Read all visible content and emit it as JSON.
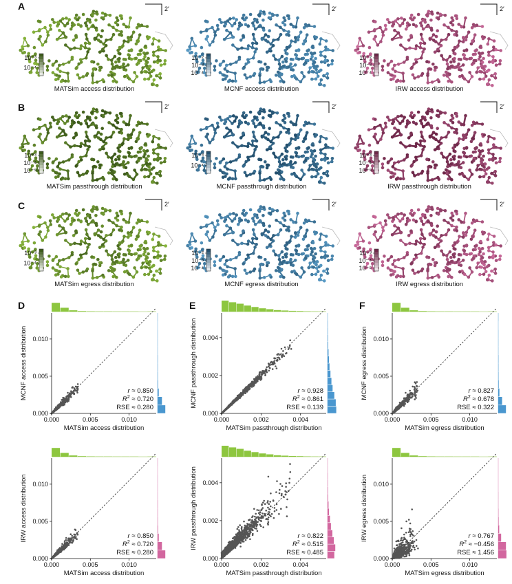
{
  "colors": {
    "matsim": "#8dbb3e",
    "matsim_dark": "#3d5a1c",
    "mcnf": "#5b9ec9",
    "mcnf_dark": "#24506e",
    "irw": "#cf6fa0",
    "irw_dark": "#6e2849",
    "points": "#555555",
    "hist_x": "#8dc63f",
    "hist_mcnf": "#4a97cf",
    "hist_irw": "#d2679f"
  },
  "panel_letters": [
    "A",
    "B",
    "C",
    "D",
    "E",
    "F"
  ],
  "scale_bar_label": "2′",
  "maps": [
    {
      "row": 0,
      "col": 0,
      "model": "matsim",
      "title": "MATSim access distribution",
      "legend_ticks": [
        "10⁻³",
        "10⁻⁴"
      ]
    },
    {
      "row": 0,
      "col": 1,
      "model": "mcnf",
      "title": "MCNF access distribution",
      "legend_ticks": [
        "10⁻²",
        "10⁻³",
        "10⁻⁴"
      ]
    },
    {
      "row": 0,
      "col": 2,
      "model": "irw",
      "title": "IRW access distribution",
      "legend_ticks": [
        "10⁻²",
        "10⁻³",
        "10⁻⁴"
      ]
    },
    {
      "row": 1,
      "col": 0,
      "model": "matsim",
      "title": "MATSim passthrough distribution",
      "legend_ticks": [
        "10⁻³",
        "10⁻⁴",
        "10⁻⁵"
      ]
    },
    {
      "row": 1,
      "col": 1,
      "model": "mcnf",
      "title": "MCNF passthrough distribution",
      "legend_ticks": [
        "10⁻³",
        "10⁻⁴"
      ]
    },
    {
      "row": 1,
      "col": 2,
      "model": "irw",
      "title": "IRW passthrough distribution",
      "legend_ticks": [
        "10⁻³",
        "10⁻⁴",
        "10⁻⁵"
      ]
    },
    {
      "row": 2,
      "col": 0,
      "model": "matsim",
      "title": "MATSim egress distribution",
      "legend_ticks": [
        "10⁻³",
        "10⁻⁴"
      ]
    },
    {
      "row": 2,
      "col": 1,
      "model": "mcnf",
      "title": "MCNF egress distribution",
      "legend_ticks": [
        "10⁻²",
        "10⁻³",
        "10⁻⁴"
      ]
    },
    {
      "row": 2,
      "col": 2,
      "model": "irw",
      "title": "IRW egress distribution",
      "legend_ticks": [
        "10⁻³",
        "10⁻⁴",
        "10⁻⁵"
      ]
    }
  ],
  "chart_data": [
    {
      "type": "scatter",
      "row": 0,
      "col": 0,
      "xlabel": "MATSim access distribution",
      "ylabel": "MCNF access distribution",
      "xlim": [
        0,
        0.0135
      ],
      "ylim": [
        0,
        0.0135
      ],
      "xticks": [
        "0.000",
        "0.005",
        "0.010"
      ],
      "yticks": [
        "0.000",
        "0.005",
        "0.010"
      ],
      "tick_values": [
        0,
        0.005,
        0.01
      ],
      "stats": {
        "r": "0.850",
        "r2": "0.720",
        "rse": "0.280"
      },
      "n_points": 700,
      "hist_x": [
        0.8,
        0.35,
        0.12,
        0.05,
        0.03,
        0.02,
        0.02,
        0.01,
        0.01,
        0.01,
        0.0,
        0.01
      ],
      "hist_y": [
        0.8,
        0.45,
        0.12,
        0.05,
        0.03,
        0.02,
        0.02,
        0.01,
        0.01,
        0.01,
        0.0,
        0.01
      ],
      "y_model": "mcnf"
    },
    {
      "type": "scatter",
      "row": 0,
      "col": 1,
      "xlabel": "MATSim passthrough distribution",
      "ylabel": "MCNF passthrough distribution",
      "xlim": [
        0,
        0.0053
      ],
      "ylim": [
        0,
        0.0053
      ],
      "xticks": [
        "0.000",
        "0.002",
        "0.004"
      ],
      "yticks": [
        "0.000",
        "0.002",
        "0.004"
      ],
      "tick_values": [
        0,
        0.002,
        0.004
      ],
      "stats": {
        "r": "0.928",
        "r2": "0.861",
        "rse": "0.139"
      },
      "n_points": 1000,
      "hist_x": [
        1.0,
        0.85,
        0.72,
        0.55,
        0.42,
        0.3,
        0.22,
        0.14,
        0.1,
        0.07,
        0.05,
        0.03,
        0.02,
        0.01
      ],
      "hist_y": [
        0.9,
        0.85,
        0.7,
        0.52,
        0.4,
        0.3,
        0.2,
        0.14,
        0.1,
        0.06,
        0.04,
        0.03,
        0.02,
        0.01
      ],
      "y_model": "mcnf"
    },
    {
      "type": "scatter",
      "row": 0,
      "col": 2,
      "xlabel": "MATSim egress distribution",
      "ylabel": "MCNF egress distribution",
      "xlim": [
        0,
        0.0135
      ],
      "ylim": [
        0,
        0.0135
      ],
      "xticks": [
        "0.000",
        "0.005",
        "0.010"
      ],
      "yticks": [
        "0.000",
        "0.005",
        "0.010"
      ],
      "tick_values": [
        0,
        0.005,
        0.01
      ],
      "stats": {
        "r": "0.827",
        "r2": "0.678",
        "rse": "0.322"
      },
      "n_points": 700,
      "hist_x": [
        0.8,
        0.35,
        0.12,
        0.05,
        0.03,
        0.02,
        0.02,
        0.01,
        0.01,
        0.01,
        0.0,
        0.01
      ],
      "hist_y": [
        0.8,
        0.4,
        0.12,
        0.05,
        0.03,
        0.02,
        0.02,
        0.01,
        0.01,
        0.01,
        0.0,
        0.01
      ],
      "y_model": "mcnf"
    },
    {
      "type": "scatter",
      "row": 1,
      "col": 0,
      "xlabel": "MATSim access distribution",
      "ylabel": "IRW access distribution",
      "xlim": [
        0,
        0.0135
      ],
      "ylim": [
        0,
        0.0135
      ],
      "xticks": [
        "0.000",
        "0.005",
        "0.010"
      ],
      "yticks": [
        "0.000",
        "0.005",
        "0.010"
      ],
      "tick_values": [
        0,
        0.005,
        0.01
      ],
      "stats": {
        "r": "0.850",
        "r2": "0.720",
        "rse": "0.280"
      },
      "n_points": 700,
      "hist_x": [
        0.8,
        0.35,
        0.12,
        0.05,
        0.03,
        0.02,
        0.02,
        0.01,
        0.01,
        0.01,
        0.0,
        0.01
      ],
      "hist_y": [
        0.8,
        0.45,
        0.12,
        0.05,
        0.03,
        0.02,
        0.02,
        0.01,
        0.01,
        0.01,
        0.0,
        0.01
      ],
      "y_model": "irw"
    },
    {
      "type": "scatter",
      "row": 1,
      "col": 1,
      "xlabel": "MATSim passthrough distribution",
      "ylabel": "IRW passthrough distribution",
      "xlim": [
        0,
        0.0053
      ],
      "ylim": [
        0,
        0.0053
      ],
      "xticks": [
        "0.000",
        "0.002",
        "0.004"
      ],
      "yticks": [
        "0.000",
        "0.002",
        "0.004"
      ],
      "tick_values": [
        0,
        0.002,
        0.004
      ],
      "stats": {
        "r": "0.822",
        "r2": "0.515",
        "rse": "0.485"
      },
      "n_points": 1000,
      "hist_x": [
        1.0,
        0.85,
        0.72,
        0.55,
        0.42,
        0.3,
        0.22,
        0.14,
        0.1,
        0.07,
        0.05,
        0.03,
        0.02,
        0.01
      ],
      "hist_y": [
        0.7,
        0.8,
        0.65,
        0.5,
        0.35,
        0.25,
        0.15,
        0.1,
        0.06,
        0.04,
        0.03,
        0.02,
        0.01,
        0.01
      ],
      "y_model": "irw"
    },
    {
      "type": "scatter",
      "row": 1,
      "col": 2,
      "xlabel": "MATSim egress distribution",
      "ylabel": "IRW egress distribution",
      "xlim": [
        0,
        0.0135
      ],
      "ylim": [
        0,
        0.0135
      ],
      "xticks": [
        "0.000",
        "0.005",
        "0.010"
      ],
      "yticks": [
        "0.000",
        "0.005",
        "0.010"
      ],
      "tick_values": [
        0,
        0.005,
        0.01
      ],
      "stats": {
        "r": "0.767",
        "r2": "−0.456",
        "rse": "1.456"
      },
      "n_points": 700,
      "hist_x": [
        0.8,
        0.35,
        0.12,
        0.05,
        0.03,
        0.02,
        0.02,
        0.01,
        0.01,
        0.01,
        0.0,
        0.01
      ],
      "hist_y": [
        0.85,
        0.8,
        0.3,
        0.1,
        0.04,
        0.02,
        0.01,
        0.01,
        0.0,
        0.0,
        0.0,
        0.0
      ],
      "y_model": "irw"
    }
  ]
}
